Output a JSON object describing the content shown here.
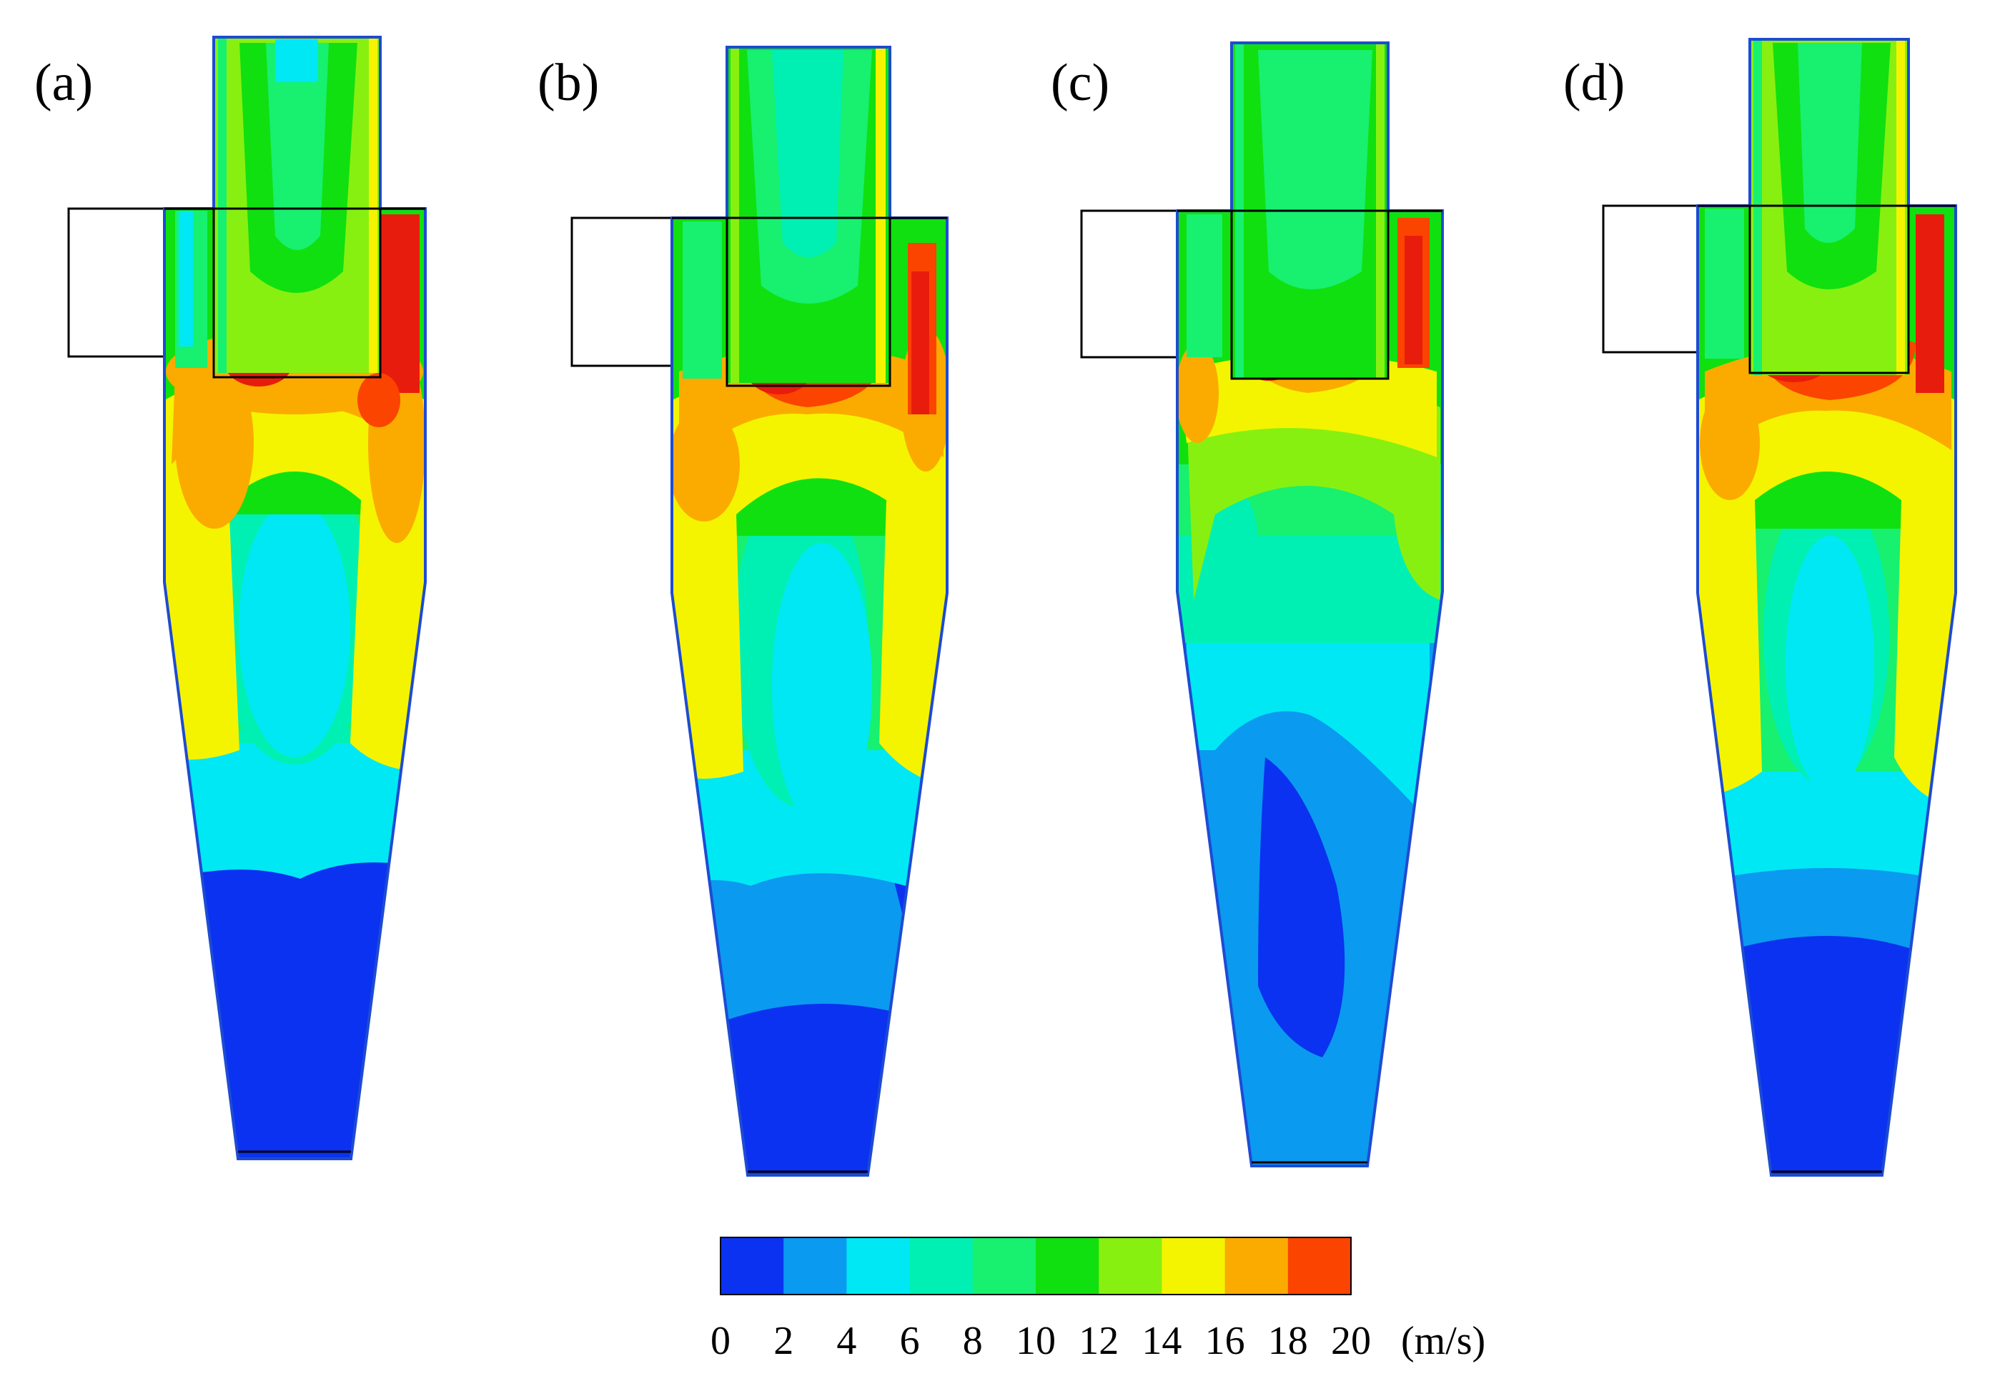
{
  "panels": [
    {
      "label": "(a)"
    },
    {
      "label": "(b)"
    },
    {
      "label": "(c)"
    },
    {
      "label": "(d)"
    }
  ],
  "colorbar": {
    "unit": "(m/s)",
    "ticks": [
      "0",
      "2",
      "4",
      "6",
      "8",
      "10",
      "12",
      "14",
      "16",
      "18",
      "20"
    ],
    "colors": [
      "#0a32f0",
      "#0a9af0",
      "#00e8f4",
      "#00f0b4",
      "#18f070",
      "#10e010",
      "#88f010",
      "#f4f400",
      "#fbab00",
      "#fa4400"
    ]
  },
  "palette": {
    "outline": "#000000",
    "wall": "#1e4bd2",
    "v_low": "#0a32f0",
    "v_4": "#0a9af0",
    "v_6": "#00e8f4",
    "v_8": "#00f0b4",
    "v_10": "#18f070",
    "v_12": "#10e010",
    "v_14": "#88f010",
    "v_16": "#f4f400",
    "v_18": "#fbab00",
    "v_max": "#fa4400",
    "v_peak": "#e81c0c"
  }
}
